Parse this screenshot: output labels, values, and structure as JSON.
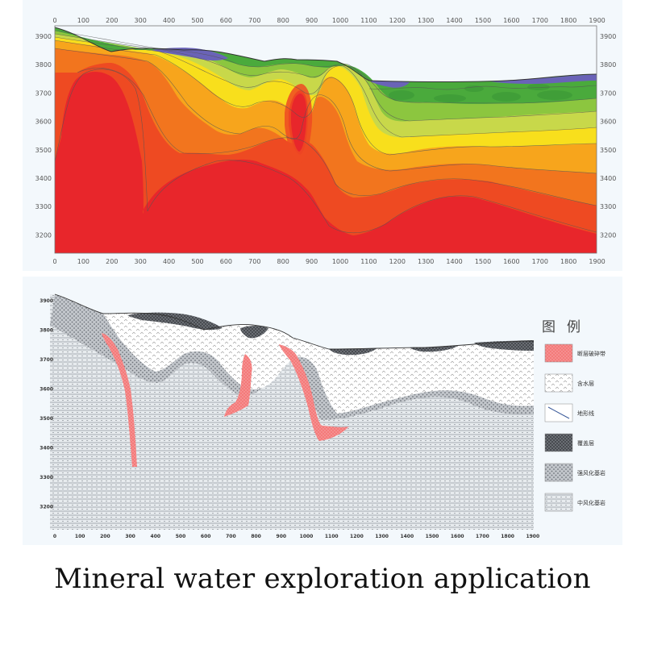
{
  "top_section": {
    "x_ticks": [
      "0",
      "100",
      "200",
      "300",
      "400",
      "500",
      "600",
      "700",
      "800",
      "900",
      "1000",
      "1100",
      "1200",
      "1300",
      "1400",
      "1500",
      "1600",
      "1700",
      "1800",
      "1900"
    ],
    "y_ticks": [
      "3900",
      "3800",
      "3700",
      "3600",
      "3500",
      "3400",
      "3300",
      "3200"
    ]
  },
  "bottom_section": {
    "x_ticks": [
      "0",
      "100",
      "200",
      "300",
      "400",
      "500",
      "600",
      "700",
      "800",
      "900",
      "1000",
      "1100",
      "1200",
      "1300",
      "1400",
      "1500",
      "1600",
      "1700",
      "1800",
      "1900"
    ],
    "y_ticks": [
      "3900",
      "3800",
      "3700",
      "3600",
      "3500",
      "3400",
      "3300",
      "3200"
    ],
    "legend": {
      "title": "图例",
      "items": [
        {
          "label": "断层破碎带"
        },
        {
          "label": "含水层"
        },
        {
          "label": "地形线"
        },
        {
          "label": "覆盖层"
        },
        {
          "label": "强风化基岩"
        },
        {
          "label": "中风化基岩"
        }
      ]
    }
  },
  "colors": {
    "red": "#e8262b",
    "orange_red": "#ee4a22",
    "orange": "#f2751e",
    "amber": "#f7a51c",
    "yellow": "#f8df1c",
    "yellow_green": "#c8d84a",
    "light_green": "#8cc63f",
    "green": "#4aaa3c",
    "blue_purple": "#6a63b7",
    "fault_zone": "#f47a7a"
  },
  "caption": "Mineral water exploration application"
}
